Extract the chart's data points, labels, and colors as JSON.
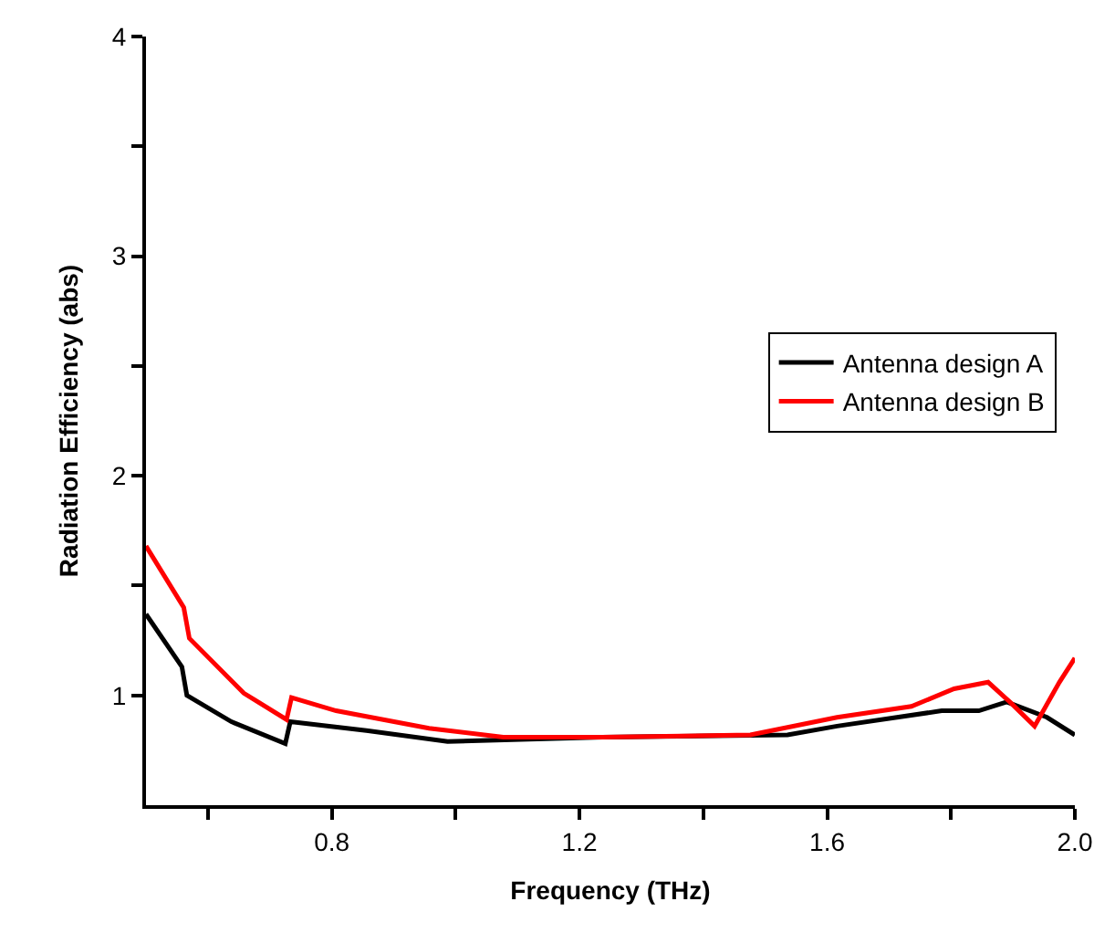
{
  "chart_data": {
    "type": "line",
    "xlabel": "Frequency (THz)",
    "ylabel": "Radiation Efficiency (abs)",
    "xlim": [
      0.5,
      2.0
    ],
    "ylim": [
      0.5,
      4
    ],
    "xticks": [
      {
        "value": 0.6,
        "label": null
      },
      0.8,
      {
        "value": 1.0,
        "label": null
      },
      1.2,
      {
        "value": 1.4,
        "label": null
      },
      1.6,
      {
        "value": 1.8,
        "label": null
      },
      {
        "value": 2.0,
        "label": "2.0"
      }
    ],
    "yticks": [
      {
        "value": 1.5,
        "label": null
      },
      1,
      2,
      {
        "value": 2.5,
        "label": null
      },
      3,
      {
        "value": 3.5,
        "label": null
      },
      4
    ],
    "legend": "right",
    "marker": "none",
    "line_style": "solid",
    "series": [
      {
        "name": "Antenna design A",
        "color": "#000000",
        "x": [
          0.5,
          0.558,
          0.566,
          0.638,
          0.725,
          0.733,
          0.856,
          0.987,
          1.237,
          1.536,
          1.616,
          1.785,
          1.845,
          1.89,
          1.955,
          2.0
        ],
        "values": [
          1.37,
          1.13,
          1.0,
          0.88,
          0.78,
          0.88,
          0.84,
          0.79,
          0.81,
          0.82,
          0.86,
          0.93,
          0.93,
          0.97,
          0.9,
          0.82
        ]
      },
      {
        "name": "Antenna design B",
        "color": "#ff0000",
        "x": [
          0.5,
          0.561,
          0.57,
          0.658,
          0.727,
          0.735,
          0.807,
          0.957,
          1.077,
          1.237,
          1.476,
          1.616,
          1.736,
          1.805,
          1.86,
          1.895,
          1.935,
          1.975,
          2.0
        ],
        "values": [
          1.68,
          1.4,
          1.26,
          1.01,
          0.89,
          0.99,
          0.93,
          0.85,
          0.81,
          0.81,
          0.82,
          0.9,
          0.95,
          1.03,
          1.06,
          0.97,
          0.86,
          1.06,
          1.17
        ]
      }
    ]
  }
}
